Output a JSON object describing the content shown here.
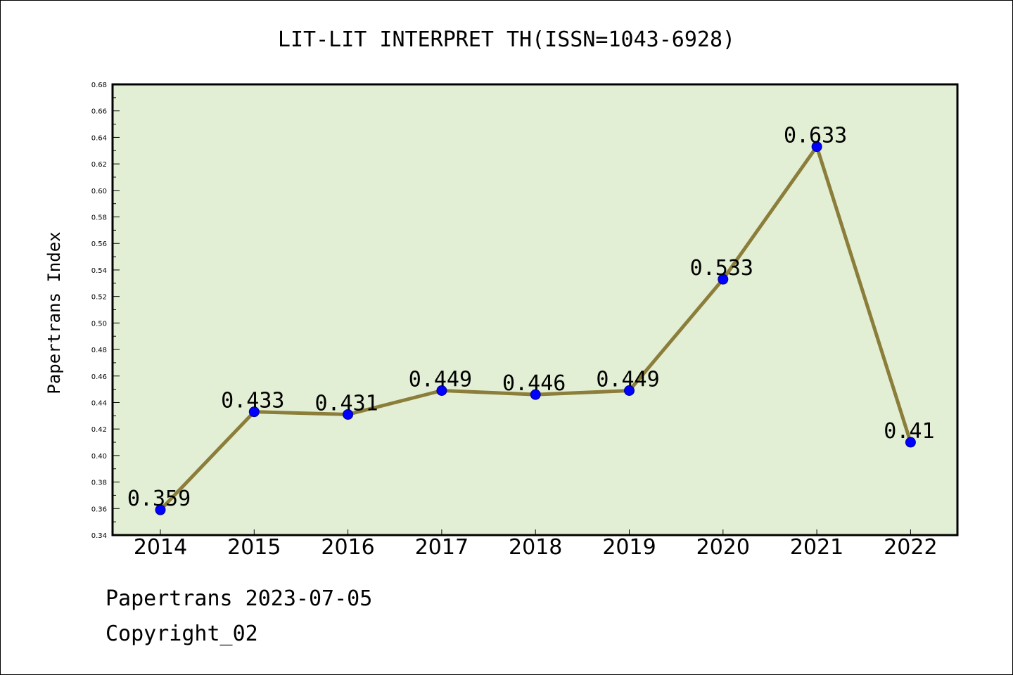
{
  "chart_data": {
    "type": "line",
    "title": "LIT-LIT INTERPRET TH(ISSN=1043-6928)",
    "xlabel": "",
    "ylabel": "Papertrans Index",
    "categories": [
      "2014",
      "2015",
      "2016",
      "2017",
      "2018",
      "2019",
      "2020",
      "2021",
      "2022"
    ],
    "series": [
      {
        "values": [
          0.359,
          0.433,
          0.431,
          0.449,
          0.446,
          0.449,
          0.533,
          0.633,
          0.41
        ],
        "data_labels": [
          "0.359",
          "0.433",
          "0.431",
          "0.449",
          "0.446",
          "0.449",
          "0.533",
          "0.633",
          "0.41"
        ],
        "line_color": "#8b7d3a",
        "marker_color": "#0000ff"
      }
    ],
    "ylim": [
      0.34,
      0.68
    ],
    "yticks": [
      "0.34",
      "0.36",
      "0.38",
      "0.40",
      "0.42",
      "0.44",
      "0.46",
      "0.48",
      "0.50",
      "0.52",
      "0.54",
      "0.56",
      "0.58",
      "0.60",
      "0.62",
      "0.64",
      "0.66",
      "0.68"
    ],
    "grid": false,
    "plot_background": "#e2efd4"
  },
  "footer": {
    "date_line": "Papertrans 2023-07-05",
    "copyright_line": "Copyright_02"
  }
}
